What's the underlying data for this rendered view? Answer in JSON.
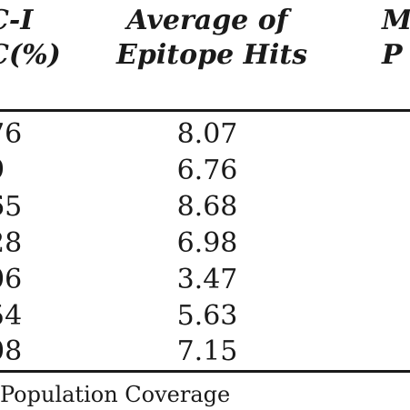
{
  "table": {
    "headers": [
      {
        "line1": "C-I",
        "line2": "C(%)"
      },
      {
        "line1": "Average of",
        "line2": "Epitope Hits"
      },
      {
        "line1": "M",
        "line2": "P"
      }
    ],
    "rows": [
      {
        "c1": "76",
        "c2": "8.07"
      },
      {
        "c1": "9",
        "c2": "6.76"
      },
      {
        "c1": "65",
        "c2": "8.68"
      },
      {
        "c1": "28",
        "c2": "6.98"
      },
      {
        "c1": "06",
        "c2": "3.47"
      },
      {
        "c1": "54",
        "c2": "5.63"
      },
      {
        "c1": "08",
        "c2": "7.15"
      }
    ]
  },
  "footnote": "Population Coverage"
}
